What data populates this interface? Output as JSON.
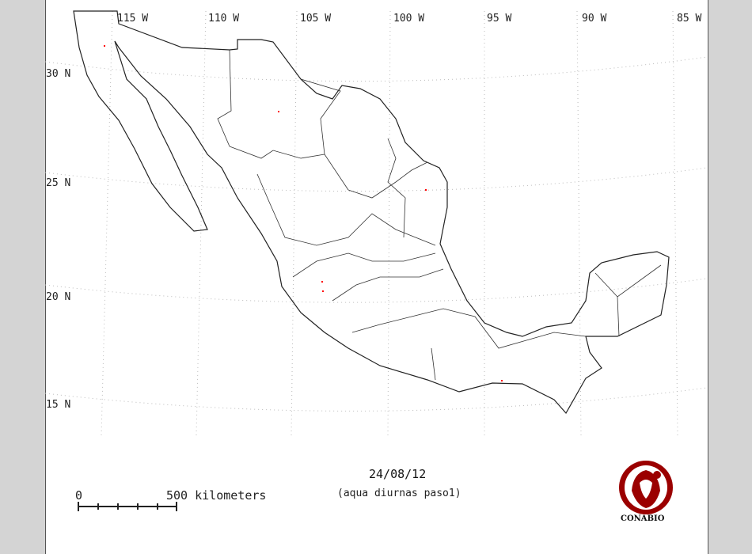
{
  "map": {
    "longitude_labels": [
      "115 W",
      "110 W",
      "105 W",
      "100 W",
      "95 W",
      "90 W",
      "85 W"
    ],
    "latitude_labels": [
      "30 N",
      "25 N",
      "20 N",
      "15 N"
    ],
    "date": "24/08/12",
    "subtitle": "(aqua diurnas paso1)",
    "scale_bar": {
      "start_label": "0",
      "end_label": "500 kilometers"
    },
    "logo_text": "CONABIO",
    "colors": {
      "outline": "#222222",
      "points": "#ff0000",
      "logo": "#9b0000",
      "background": "#d4d4d4"
    }
  }
}
